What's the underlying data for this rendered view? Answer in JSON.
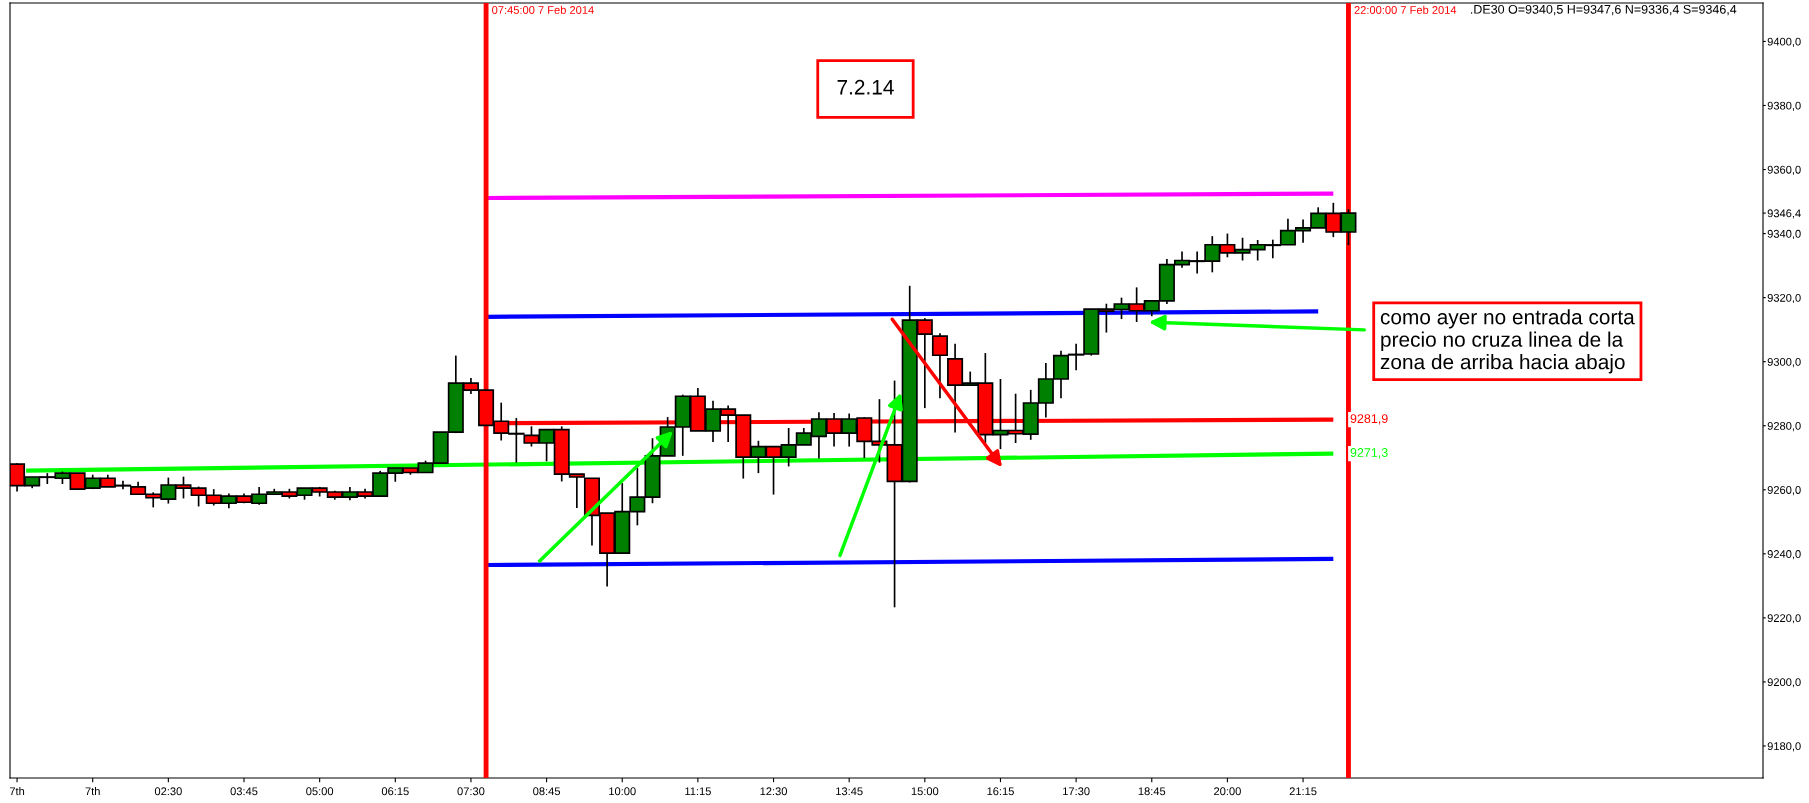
{
  "chart_data": {
    "type": "candlestick",
    "x": [
      "2014-02-07T00:00",
      "2014-02-07T00:15",
      "2014-02-07T00:30",
      "2014-02-07T00:45",
      "2014-02-07T01:00",
      "2014-02-07T01:15",
      "2014-02-07T01:30",
      "2014-02-07T01:45",
      "2014-02-07T02:00",
      "2014-02-07T02:15",
      "2014-02-07T02:30",
      "2014-02-07T02:45",
      "2014-02-07T03:00",
      "2014-02-07T03:15",
      "2014-02-07T03:30",
      "2014-02-07T03:45",
      "2014-02-07T04:00",
      "2014-02-07T04:15",
      "2014-02-07T04:30",
      "2014-02-07T04:45",
      "2014-02-07T05:00",
      "2014-02-07T05:15",
      "2014-02-07T05:30",
      "2014-02-07T05:45",
      "2014-02-07T06:00",
      "2014-02-07T06:15",
      "2014-02-07T06:30",
      "2014-02-07T06:45",
      "2014-02-07T07:00",
      "2014-02-07T07:15",
      "2014-02-07T07:30",
      "2014-02-07T07:45",
      "2014-02-07T08:00",
      "2014-02-07T08:15",
      "2014-02-07T08:30",
      "2014-02-07T08:45",
      "2014-02-07T09:00",
      "2014-02-07T09:15",
      "2014-02-07T09:30",
      "2014-02-07T09:45",
      "2014-02-07T10:00",
      "2014-02-07T10:15",
      "2014-02-07T10:30",
      "2014-02-07T10:45",
      "2014-02-07T11:00",
      "2014-02-07T11:15",
      "2014-02-07T11:30",
      "2014-02-07T11:45",
      "2014-02-07T12:00",
      "2014-02-07T12:15",
      "2014-02-07T12:30",
      "2014-02-07T12:45",
      "2014-02-07T13:00",
      "2014-02-07T13:15",
      "2014-02-07T13:30",
      "2014-02-07T13:45",
      "2014-02-07T14:00",
      "2014-02-07T14:15",
      "2014-02-07T14:30",
      "2014-02-07T14:45",
      "2014-02-07T15:00",
      "2014-02-07T15:15",
      "2014-02-07T15:30",
      "2014-02-07T15:45",
      "2014-02-07T16:00",
      "2014-02-07T16:15",
      "2014-02-07T16:30",
      "2014-02-07T16:45",
      "2014-02-07T17:00",
      "2014-02-07T17:15",
      "2014-02-07T17:30",
      "2014-02-07T17:45",
      "2014-02-07T18:00",
      "2014-02-07T18:15",
      "2014-02-07T18:30",
      "2014-02-07T18:45",
      "2014-02-07T19:00",
      "2014-02-07T19:15",
      "2014-02-07T19:30",
      "2014-02-07T19:45",
      "2014-02-07T20:00",
      "2014-02-07T20:15",
      "2014-02-07T20:30",
      "2014-02-07T20:45",
      "2014-02-07T21:00",
      "2014-02-07T21:15",
      "2014-02-07T21:30",
      "2014-02-07T21:45",
      "2014-02-07T22:00"
    ],
    "ohlc": [
      [
        9268.0,
        9268.3,
        9259.5,
        9261.3
      ],
      [
        9261.3,
        9264.0,
        9260.5,
        9264.0
      ],
      [
        9263.9,
        9265.2,
        9261.8,
        9264.0
      ],
      [
        9263.6,
        9265.7,
        9261.8,
        9265.2
      ],
      [
        9265.2,
        9265.2,
        9260.2,
        9260.2
      ],
      [
        9260.5,
        9264.7,
        9260.2,
        9263.6
      ],
      [
        9263.6,
        9264.7,
        9260.9,
        9260.9
      ],
      [
        9261.3,
        9262.8,
        9260.2,
        9261.3
      ],
      [
        9260.9,
        9262.5,
        9258.6,
        9258.6
      ],
      [
        9258.6,
        9259.2,
        9254.5,
        9257.5
      ],
      [
        9257.1,
        9263.8,
        9255.7,
        9261.5
      ],
      [
        9261.5,
        9264.1,
        9257.3,
        9260.5
      ],
      [
        9260.5,
        9261.0,
        9254.8,
        9258.3
      ],
      [
        9258.3,
        9260.2,
        9255.1,
        9255.8
      ],
      [
        9255.8,
        9258.8,
        9254.2,
        9258.0
      ],
      [
        9258.0,
        9258.8,
        9255.8,
        9256.1
      ],
      [
        9255.8,
        9260.9,
        9255.3,
        9258.6
      ],
      [
        9258.6,
        9260.3,
        9258.6,
        9259.3
      ],
      [
        9259.3,
        9260.3,
        9257.3,
        9258.0
      ],
      [
        9258.3,
        9260.5,
        9256.9,
        9260.5
      ],
      [
        9260.5,
        9260.9,
        9257.9,
        9259.3
      ],
      [
        9259.3,
        9259.7,
        9256.9,
        9257.7
      ],
      [
        9257.7,
        9260.9,
        9256.7,
        9259.3
      ],
      [
        9259.3,
        9260.3,
        9257.3,
        9258.0
      ],
      [
        9258.0,
        9265.9,
        9258.0,
        9265.2
      ],
      [
        9265.2,
        9266.8,
        9262.5,
        9266.8
      ],
      [
        9266.8,
        9266.8,
        9264.7,
        9265.4
      ],
      [
        9265.4,
        9269.1,
        9265.4,
        9268.3
      ],
      [
        9268.3,
        9278.0,
        9268.3,
        9278.0
      ],
      [
        9278.0,
        9301.9,
        9277.7,
        9293.3
      ],
      [
        9293.3,
        9294.9,
        9289.9,
        9291.1
      ],
      [
        9291.1,
        9291.1,
        9280.0,
        9280.1
      ],
      [
        9281.4,
        9287.2,
        9275.4,
        9277.7
      ],
      [
        9277.5,
        9282.4,
        9268.5,
        9277.5
      ],
      [
        9277.0,
        9279.8,
        9273.5,
        9274.6
      ],
      [
        9274.6,
        9278.8,
        9268.9,
        9278.8
      ],
      [
        9278.8,
        9279.8,
        9262.6,
        9264.9
      ],
      [
        9264.9,
        9264.9,
        9254.3,
        9264.0
      ],
      [
        9263.6,
        9263.6,
        9242.6,
        9252.0
      ],
      [
        9252.7,
        9252.7,
        9229.8,
        9240.2
      ],
      [
        9240.2,
        9262.1,
        9240.2,
        9253.2
      ],
      [
        9253.2,
        9266.8,
        9248.9,
        9257.7
      ],
      [
        9257.7,
        9276.1,
        9255.8,
        9270.6
      ],
      [
        9270.6,
        9282.7,
        9270.6,
        9279.6
      ],
      [
        9279.6,
        9289.7,
        9270.6,
        9289.2
      ],
      [
        9289.2,
        9291.8,
        9278.4,
        9278.4
      ],
      [
        9278.4,
        9287.8,
        9274.9,
        9285.2
      ],
      [
        9285.2,
        9286.3,
        9274.9,
        9283.3
      ],
      [
        9283.3,
        9283.3,
        9263.5,
        9270.2
      ],
      [
        9270.2,
        9275.3,
        9265.2,
        9273.5
      ],
      [
        9273.5,
        9273.5,
        9258.5,
        9270.2
      ],
      [
        9270.2,
        9279.3,
        9267.3,
        9274.0
      ],
      [
        9274.0,
        9279.3,
        9274.0,
        9277.7
      ],
      [
        9276.7,
        9284.2,
        9269.8,
        9282.1
      ],
      [
        9282.1,
        9284.0,
        9273.5,
        9277.7
      ],
      [
        9277.7,
        9283.8,
        9273.5,
        9282.1
      ],
      [
        9282.4,
        9282.7,
        9269.9,
        9275.1
      ],
      [
        9275.1,
        9288.3,
        9268.5,
        9274.0
      ],
      [
        9274.0,
        9294.1,
        9223.3,
        9262.6
      ],
      [
        9262.6,
        9323.7,
        9262.3,
        9313.0
      ],
      [
        9313.0,
        9313.6,
        9285.5,
        9308.6
      ],
      [
        9308.0,
        9308.9,
        9288.6,
        9302.0
      ],
      [
        9300.9,
        9305.6,
        9277.9,
        9292.7
      ],
      [
        9292.7,
        9296.9,
        9292.7,
        9293.3
      ],
      [
        9293.3,
        9302.7,
        9274.6,
        9277.2
      ],
      [
        9277.2,
        9294.6,
        9272.7,
        9278.5
      ],
      [
        9278.5,
        9290.0,
        9274.6,
        9277.5
      ],
      [
        9277.4,
        9291.2,
        9275.6,
        9287.1
      ],
      [
        9287.1,
        9299.6,
        9282.6,
        9294.6
      ],
      [
        9294.6,
        9303.4,
        9288.6,
        9301.9
      ],
      [
        9302.2,
        9305.6,
        9297.3,
        9302.2
      ],
      [
        9302.4,
        9316.4,
        9301.9,
        9316.4
      ],
      [
        9316.4,
        9318.1,
        9309.1,
        9315.8
      ],
      [
        9316.3,
        9320.0,
        9313.3,
        9318.0
      ],
      [
        9318.0,
        9323.2,
        9312.4,
        9315.9
      ],
      [
        9315.9,
        9319.0,
        9314.2,
        9319.0
      ],
      [
        9319.0,
        9332.1,
        9318.0,
        9330.3
      ],
      [
        9330.3,
        9334.4,
        9329.3,
        9331.6
      ],
      [
        9331.4,
        9334.4,
        9327.5,
        9331.4
      ],
      [
        9331.4,
        9339.2,
        9327.9,
        9336.5
      ],
      [
        9336.5,
        9340.0,
        9332.6,
        9334.0
      ],
      [
        9334.0,
        9338.7,
        9331.6,
        9335.0
      ],
      [
        9335.0,
        9338.0,
        9331.6,
        9336.5
      ],
      [
        9336.4,
        9338.1,
        9332.3,
        9336.4
      ],
      [
        9336.5,
        9344.6,
        9336.5,
        9340.9
      ],
      [
        9340.9,
        9344.4,
        9337.1,
        9341.8
      ],
      [
        9341.8,
        9348.2,
        9341.8,
        9346.3
      ],
      [
        9346.3,
        9349.6,
        9338.9,
        9340.5
      ],
      [
        9340.5,
        9347.6,
        9336.4,
        9346.4
      ]
    ],
    "series": [
      {
        "type": "line",
        "color": "#ff00ff",
        "x": [
          "2014-02-07T07:45",
          "2014-02-07T21:45"
        ],
        "values": [
          9351.1,
          9352.5
        ]
      },
      {
        "type": "line",
        "color": "#0000ff",
        "x": [
          "2014-02-07T07:45",
          "2014-02-07T21:30"
        ],
        "values": [
          9314.0,
          9315.7
        ]
      },
      {
        "type": "line",
        "color": "#ff0000",
        "x": [
          "2014-02-07T07:45",
          "2014-02-07T21:45"
        ],
        "values": [
          9280.8,
          9281.9
        ]
      },
      {
        "type": "line",
        "color": "#00ff00",
        "x": [
          "2014-02-07T00:09",
          "2014-02-07T21:45"
        ],
        "values": [
          9266.0,
          9271.3
        ]
      },
      {
        "type": "line",
        "color": "#0000ff",
        "x": [
          "2014-02-07T07:45",
          "2014-02-07T21:45"
        ],
        "values": [
          9236.5,
          9238.4
        ]
      }
    ],
    "ref_lines": [
      {
        "axis": "x",
        "value": "2014-02-07T07:45",
        "label": "07:45:00 7 Feb 2014",
        "color": "#ff0000"
      },
      {
        "axis": "x",
        "value": "2014-02-07T22:00",
        "label": "22:00:00 7 Feb 2014",
        "color": "#ff0000"
      }
    ],
    "annotations": [
      ".DE30 O=9340,5 H=9347,6 N=9336,4 S=9346,4",
      "7.2.14",
      "como ayer no entrada corta\nprecio no cruza linea de la\nzona de arriba hacia abajo",
      {
        "text": "9281,9",
        "x": "2014-02-07T21:45",
        "y": 9281.9
      },
      {
        "text": "9271,3",
        "x": "2014-02-07T21:45",
        "y": 9271.3
      }
    ],
    "xlim": [
      "2014-02-06T23:53",
      "2014-02-08T04:51"
    ],
    "ylim": [
      9170,
      9412
    ],
    "xticks": [
      {
        "value": "2014-02-07T00:00",
        "label": "7th"
      },
      {
        "value": "2014-02-07T01:15",
        "label": "7th"
      },
      {
        "value": "2014-02-07T02:30",
        "label": "02:30"
      },
      {
        "value": "2014-02-07T03:45",
        "label": "03:45"
      },
      {
        "value": "2014-02-07T05:00",
        "label": "05:00"
      },
      {
        "value": "2014-02-07T06:15",
        "label": "06:15"
      },
      {
        "value": "2014-02-07T07:30",
        "label": "07:30"
      },
      {
        "value": "2014-02-07T08:45",
        "label": "08:45"
      },
      {
        "value": "2014-02-07T10:00",
        "label": "10:00"
      },
      {
        "value": "2014-02-07T11:15",
        "label": "11:15"
      },
      {
        "value": "2014-02-07T12:30",
        "label": "12:30"
      },
      {
        "value": "2014-02-07T13:45",
        "label": "13:45"
      },
      {
        "value": "2014-02-07T15:00",
        "label": "15:00"
      },
      {
        "value": "2014-02-07T16:15",
        "label": "16:15"
      },
      {
        "value": "2014-02-07T17:30",
        "label": "17:30"
      },
      {
        "value": "2014-02-07T18:45",
        "label": "18:45"
      },
      {
        "value": "2014-02-07T20:00",
        "label": "20:00"
      },
      {
        "value": "2014-02-07T21:15",
        "label": "21:15"
      }
    ],
    "yticks": [
      {
        "value": 9180,
        "label": "9180,0"
      },
      {
        "value": 9200,
        "label": "9200,0"
      },
      {
        "value": 9220,
        "label": "9220,0"
      },
      {
        "value": 9240,
        "label": "9240,0"
      },
      {
        "value": 9260,
        "label": "9260,0"
      },
      {
        "value": 9280,
        "label": "9280,0"
      },
      {
        "value": 9300,
        "label": "9300,0"
      },
      {
        "value": 9320,
        "label": "9320,0"
      },
      {
        "value": 9340,
        "label": "9340,0"
      },
      {
        "value": 9346.4,
        "label": "9346,4"
      },
      {
        "value": 9360,
        "label": "9360,0"
      },
      {
        "value": 9380,
        "label": "9380,0"
      },
      {
        "value": 9400,
        "label": "9400,0"
      }
    ],
    "grid": false
  }
}
